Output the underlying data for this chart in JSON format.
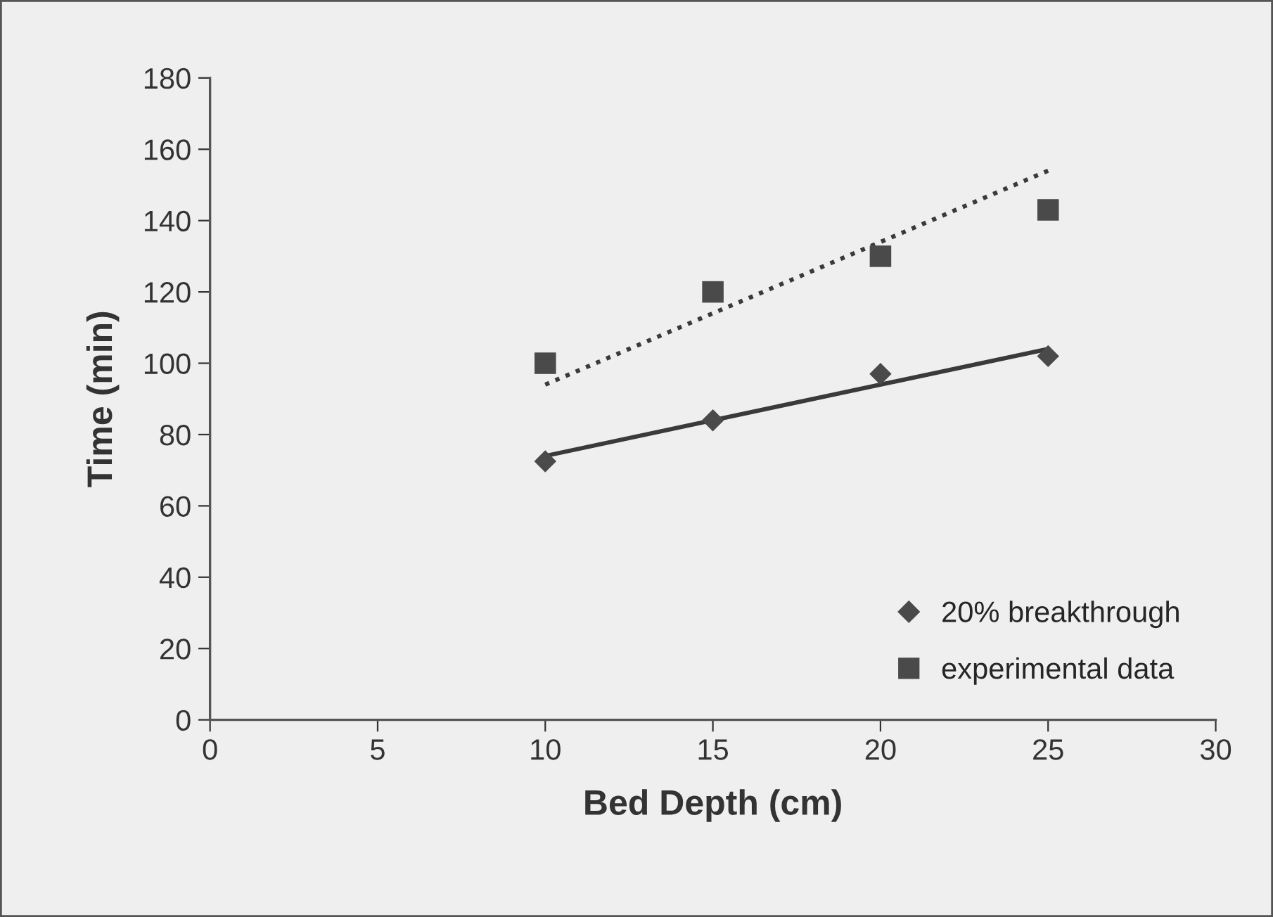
{
  "chart_data": {
    "type": "scatter",
    "xlabel": "Bed Depth (cm)",
    "ylabel": "Time (min)",
    "xlim": [
      0,
      30
    ],
    "xticks": [
      0,
      5,
      10,
      15,
      20,
      25,
      30
    ],
    "ylim": [
      0,
      180
    ],
    "yticks": [
      0,
      20,
      40,
      60,
      80,
      100,
      120,
      140,
      160,
      180
    ],
    "grid": false,
    "legend": "bottom right",
    "series": [
      {
        "name": "20% breakthrough",
        "color": "#4a4a4a",
        "marker": "diamond",
        "x": [
          10,
          15,
          20,
          25
        ],
        "values": [
          72.5,
          84,
          97,
          102
        ]
      },
      {
        "name": "experimental data",
        "color": "#4a4a4a",
        "marker": "square",
        "x": [
          10,
          15,
          20,
          25
        ],
        "values": [
          100,
          120,
          130,
          143
        ]
      },
      {
        "type": "line",
        "color": "#3a3a3a",
        "marker": "none",
        "line_style": "solid",
        "x": [
          10,
          25
        ],
        "values": [
          74,
          104
        ]
      },
      {
        "type": "line",
        "color": "#3a3a3a",
        "marker": "none",
        "line_style": "dotted",
        "x": [
          10,
          25
        ],
        "values": [
          94,
          154
        ]
      }
    ]
  }
}
